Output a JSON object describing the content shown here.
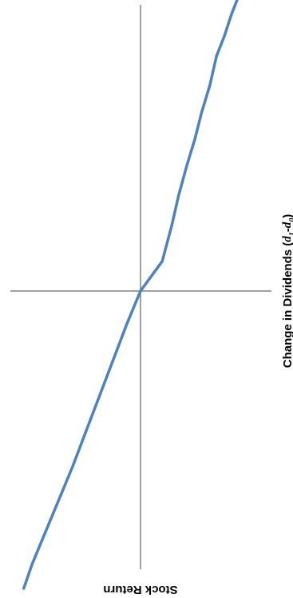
{
  "chart_data": {
    "type": "line",
    "orientation": "rotated-90-clockwise",
    "xlabel": {
      "prefix": "Change in Dividends (",
      "d1_base": "d",
      "d1_sub": "1",
      "minus": "-",
      "d0_base": "d",
      "d0_sub": "0",
      "suffix": ")"
    },
    "ylabel": "Stock Return",
    "grid": false,
    "legend": "none",
    "xlim": [
      -10,
      10
    ],
    "ylim": [
      -10,
      10
    ],
    "series": [
      {
        "color": "#4f81bd",
        "x": [
          -10,
          -9.3,
          -8.6,
          -7.9,
          -6.9,
          -6.0,
          -5.1,
          -4.2,
          -3.2,
          -2.2,
          -1.0,
          0.0,
          1.1,
          2.3,
          3.5,
          4.7,
          5.9,
          7.0,
          8.1,
          9.2,
          10.0
        ],
        "y": [
          -7.3,
          -6.7,
          -6.2,
          -5.6,
          -5.1,
          -4.5,
          -4.0,
          -3.4,
          -2.8,
          -2.3,
          -1.6,
          0.0,
          1.0,
          2.0,
          3.0,
          4.0,
          5.0,
          6.0,
          7.0,
          8.0,
          8.6
        ]
      }
    ]
  }
}
